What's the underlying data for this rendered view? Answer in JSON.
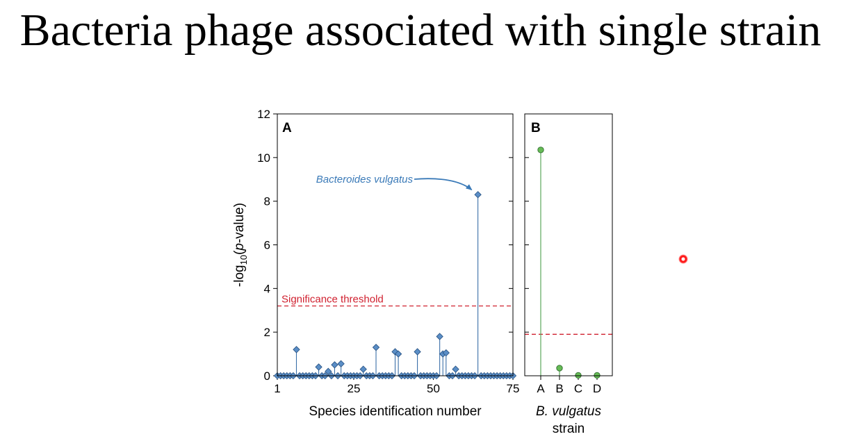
{
  "slide": {
    "title": "Bacteria phage associated with single strain"
  },
  "colors": {
    "panel_a": "#3a6fa8",
    "panel_a_fill": "#5b8ec6",
    "panel_b": "#5aa85a",
    "panel_b_fill": "#66bb55",
    "threshold": "#d0202f",
    "annotation": "#3a7ab8"
  },
  "chart_data": [
    {
      "type": "scatter",
      "panel_label": "A",
      "title": "",
      "xlabel": "Species identification number",
      "ylabel": "-log",
      "ylabel_sub": "10",
      "ylabel_paren_open": "(",
      "ylabel_italic": "p",
      "ylabel_suffix": "-value)",
      "xlim": [
        1,
        75
      ],
      "ylim": [
        0,
        12
      ],
      "x_ticks": [
        1,
        25,
        50,
        75
      ],
      "y_ticks": [
        0,
        2,
        4,
        6,
        8,
        10,
        12
      ],
      "threshold": {
        "value": 3.2,
        "label": "Significance threshold"
      },
      "annotation": {
        "text": "Bacteroides vulgatus",
        "x": 64,
        "y": 8.3
      },
      "points": {
        "x": [
          1,
          2,
          3,
          4,
          5,
          6,
          7,
          8,
          9,
          10,
          11,
          12,
          13,
          14,
          15,
          16,
          17,
          18,
          19,
          20,
          21,
          22,
          23,
          24,
          25,
          26,
          27,
          28,
          29,
          30,
          31,
          32,
          33,
          34,
          35,
          36,
          37,
          38,
          39,
          40,
          41,
          42,
          43,
          44,
          45,
          46,
          47,
          48,
          49,
          50,
          51,
          52,
          53,
          54,
          55,
          56,
          57,
          58,
          59,
          60,
          61,
          62,
          63,
          64,
          65,
          66,
          67,
          68,
          69,
          70,
          71,
          72,
          73,
          74,
          75
        ],
        "y": [
          0,
          0,
          0,
          0,
          0,
          0,
          1.2,
          0,
          0,
          0,
          0,
          0,
          0,
          0.4,
          0,
          0,
          0.2,
          0,
          0.5,
          0,
          0.55,
          0,
          0,
          0,
          0,
          0,
          0,
          0.3,
          0,
          0,
          0,
          1.3,
          0,
          0,
          0,
          0,
          0,
          1.1,
          1.0,
          0,
          0,
          0,
          0,
          0,
          1.1,
          0,
          0,
          0,
          0,
          0,
          0,
          1.8,
          1.0,
          1.05,
          0,
          0,
          0.3,
          0,
          0,
          0,
          0,
          0,
          0,
          8.3,
          0,
          0,
          0,
          0,
          0,
          0,
          0,
          0,
          0,
          0,
          0
        ]
      }
    },
    {
      "type": "scatter",
      "panel_label": "B",
      "title": "",
      "xlabel_italic": "B. vulgatus",
      "xlabel": "strain",
      "categories": [
        "A",
        "B",
        "C",
        "D"
      ],
      "values": [
        10.35,
        0.35,
        0.02,
        0.02
      ],
      "ylim": [
        0,
        12
      ],
      "threshold": {
        "value": 1.9
      }
    }
  ]
}
